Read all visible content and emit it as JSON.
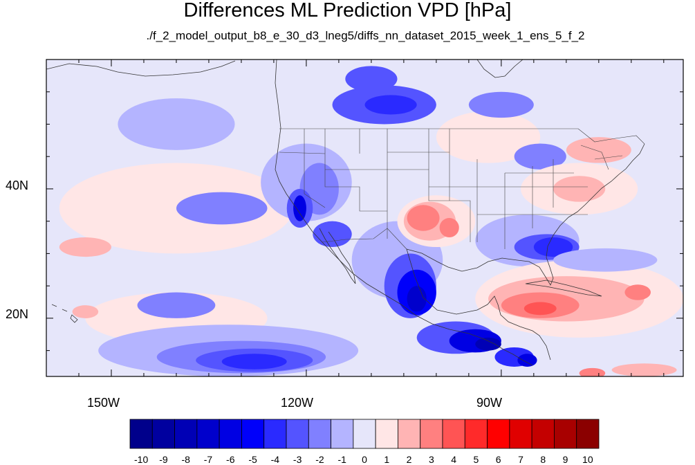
{
  "title": "Differences ML Prediction VPD [hPa]",
  "subtitle": "./f_2_model_output_b8_e_30_d3_lneg5/diffs_nn_dataset_2015_week_1_ens_5_f_2",
  "map": {
    "projection": "cylindrical-equidistant",
    "lon_range": [
      -160,
      -62
    ],
    "lat_range": [
      11,
      60
    ],
    "background_color": "#e6e6fa",
    "lat_ticks": [
      "40N",
      "20N"
    ],
    "lon_ticks": [
      "150W",
      "120W",
      "90W"
    ]
  },
  "colorbar": {
    "labels": [
      "-10",
      "-9",
      "-8",
      "-7",
      "-6",
      "-5",
      "-4",
      "-3",
      "-2",
      "-1",
      "0",
      "1",
      "2",
      "3",
      "4",
      "5",
      "6",
      "7",
      "8",
      "9",
      "10"
    ],
    "colors": [
      "#00008b",
      "#00009f",
      "#0000b5",
      "#0000cc",
      "#0000e3",
      "#0000fa",
      "#2a2aff",
      "#5454ff",
      "#8080ff",
      "#b4b4ff",
      "#e6e6fa",
      "#ffe6e6",
      "#ffb4b4",
      "#ff8080",
      "#ff5454",
      "#ff2a2a",
      "#ff0000",
      "#e00000",
      "#c40000",
      "#a80000",
      "#8b0000"
    ]
  },
  "field": [
    {
      "c": -1,
      "lon": -140,
      "lat": 50,
      "rx": 9,
      "ry": 4
    },
    {
      "c": 1,
      "lon": -140,
      "lat": 37,
      "rx": 18,
      "ry": 7
    },
    {
      "c": 1,
      "lon": -140,
      "lat": 20,
      "rx": 14,
      "ry": 4
    },
    {
      "c": 1,
      "lon": -92,
      "lat": 48,
      "rx": 8,
      "ry": 4
    },
    {
      "c": -2,
      "lon": -133,
      "lat": 37,
      "rx": 7,
      "ry": 2.5
    },
    {
      "c": -2,
      "lon": -140,
      "lat": 22,
      "rx": 6,
      "ry": 2
    },
    {
      "c": -1,
      "lon": -132,
      "lat": 15,
      "rx": 20,
      "ry": 4
    },
    {
      "c": -2,
      "lon": -130,
      "lat": 14,
      "rx": 13,
      "ry": 2.5
    },
    {
      "c": -3,
      "lon": -128,
      "lat": 13.5,
      "rx": 9,
      "ry": 1.8
    },
    {
      "c": -4,
      "lon": -128,
      "lat": 13.3,
      "rx": 5,
      "ry": 1.2
    },
    {
      "c": 2,
      "lon": -154,
      "lat": 31,
      "rx": 4,
      "ry": 1.5
    },
    {
      "c": 2,
      "lon": -154,
      "lat": 21,
      "rx": 2,
      "ry": 1
    },
    {
      "c": -3,
      "lon": -108,
      "lat": 53,
      "rx": 8,
      "ry": 3
    },
    {
      "c": -4,
      "lon": -107,
      "lat": 53,
      "rx": 4,
      "ry": 1.5
    },
    {
      "c": -3,
      "lon": -110,
      "lat": 57,
      "rx": 4,
      "ry": 2
    },
    {
      "c": -2,
      "lon": -90,
      "lat": 53,
      "rx": 5,
      "ry": 2
    },
    {
      "c": -1,
      "lon": -120,
      "lat": 41,
      "rx": 7,
      "ry": 6
    },
    {
      "c": -2,
      "lon": -118,
      "lat": 40,
      "rx": 3,
      "ry": 4
    },
    {
      "c": -3,
      "lon": -121,
      "lat": 37,
      "rx": 2,
      "ry": 3
    },
    {
      "c": -6,
      "lon": -121,
      "lat": 37,
      "rx": 1,
      "ry": 2
    },
    {
      "c": -3,
      "lon": -116,
      "lat": 33,
      "rx": 3,
      "ry": 2
    },
    {
      "c": -1,
      "lon": -86,
      "lat": 32,
      "rx": 8,
      "ry": 4
    },
    {
      "c": -3,
      "lon": -83,
      "lat": 31,
      "rx": 5,
      "ry": 2
    },
    {
      "c": -4,
      "lon": -82,
      "lat": 31,
      "rx": 3,
      "ry": 1.5
    },
    {
      "c": -2,
      "lon": -84,
      "lat": 45,
      "rx": 4,
      "ry": 2
    },
    {
      "c": -1,
      "lon": -106,
      "lat": 29,
      "rx": 7,
      "ry": 6
    },
    {
      "c": -3,
      "lon": -104,
      "lat": 25,
      "rx": 4,
      "ry": 5
    },
    {
      "c": -5,
      "lon": -103,
      "lat": 24,
      "rx": 3,
      "ry": 3.5
    },
    {
      "c": -7,
      "lon": -103,
      "lat": 23,
      "rx": 1.5,
      "ry": 2
    },
    {
      "c": -3,
      "lon": -97,
      "lat": 17,
      "rx": 6,
      "ry": 2.5
    },
    {
      "c": -6,
      "lon": -94,
      "lat": 16.5,
      "rx": 4,
      "ry": 1.8
    },
    {
      "c": -8,
      "lon": -92,
      "lat": 16,
      "rx": 2,
      "ry": 1
    },
    {
      "c": -4,
      "lon": -88,
      "lat": 14,
      "rx": 3,
      "ry": 1.5
    },
    {
      "c": -6,
      "lon": -86,
      "lat": 13.5,
      "rx": 1.5,
      "ry": 1
    },
    {
      "c": 1,
      "lon": -100,
      "lat": 35,
      "rx": 6,
      "ry": 4
    },
    {
      "c": 2,
      "lon": -101,
      "lat": 35,
      "rx": 4,
      "ry": 3
    },
    {
      "c": 3,
      "lon": -102,
      "lat": 35.5,
      "rx": 2.5,
      "ry": 2
    },
    {
      "c": 3,
      "lon": -98,
      "lat": 34,
      "rx": 1.5,
      "ry": 1.5
    },
    {
      "c": 1,
      "lon": -78,
      "lat": 40,
      "rx": 9,
      "ry": 4
    },
    {
      "c": 2,
      "lon": -78,
      "lat": 40,
      "rx": 4,
      "ry": 2
    },
    {
      "c": 2,
      "lon": -75,
      "lat": 46,
      "rx": 5,
      "ry": 2
    },
    {
      "c": 1,
      "lon": -78,
      "lat": 23,
      "rx": 16,
      "ry": 6
    },
    {
      "c": 2,
      "lon": -80,
      "lat": 23,
      "rx": 12,
      "ry": 3.5
    },
    {
      "c": 3,
      "lon": -84,
      "lat": 22,
      "rx": 6,
      "ry": 2
    },
    {
      "c": 4,
      "lon": -84,
      "lat": 21.5,
      "rx": 2.5,
      "ry": 1
    },
    {
      "c": 3,
      "lon": -69,
      "lat": 24,
      "rx": 2,
      "ry": 1.2
    },
    {
      "c": -1,
      "lon": -74,
      "lat": 29,
      "rx": 8,
      "ry": 1.8
    },
    {
      "c": 2,
      "lon": -68,
      "lat": 12,
      "rx": 5,
      "ry": 1
    },
    {
      "c": 3,
      "lon": -76,
      "lat": 11.5,
      "rx": 2,
      "ry": 0.8
    }
  ]
}
